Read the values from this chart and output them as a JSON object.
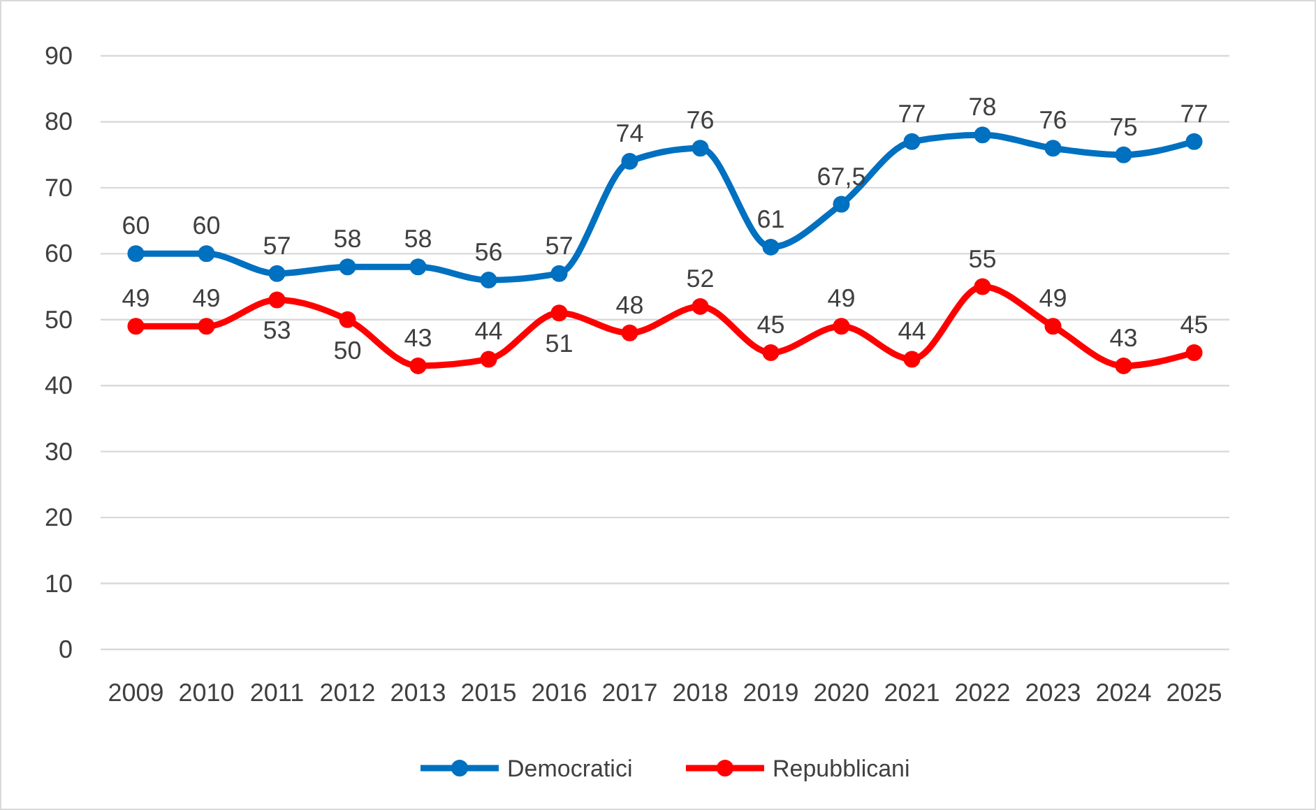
{
  "chart_data": {
    "type": "line",
    "categories": [
      "2009",
      "2010",
      "2011",
      "2012",
      "2013",
      "2015",
      "2016",
      "2017",
      "2018",
      "2019",
      "2020",
      "2021",
      "2022",
      "2023",
      "2024",
      "2025"
    ],
    "series": [
      {
        "name": "Democratici",
        "color": "#0070c0",
        "values": [
          60,
          60,
          57,
          58,
          58,
          56,
          57,
          74,
          76,
          61,
          67.5,
          77,
          78,
          76,
          75,
          77
        ],
        "value_labels": [
          "60",
          "60",
          "57",
          "58",
          "58",
          "56",
          "57",
          "74",
          "76",
          "61",
          "67,5",
          "77",
          "78",
          "76",
          "75",
          "77"
        ]
      },
      {
        "name": "Repubblicani",
        "color": "#ff0000",
        "values": [
          49,
          49,
          53,
          50,
          43,
          44,
          51,
          48,
          52,
          45,
          49,
          44,
          55,
          49,
          43,
          45
        ],
        "value_labels": [
          "49",
          "49",
          "53",
          "50",
          "43",
          "44",
          "51",
          "48",
          "52",
          "45",
          "49",
          "44",
          "55",
          "49",
          "43",
          "45"
        ]
      }
    ],
    "ylim": [
      0,
      90
    ],
    "yticks": [
      0,
      10,
      20,
      30,
      40,
      50,
      60,
      70,
      80,
      90
    ],
    "grid": "y",
    "legend": "bottom",
    "marker": "circle",
    "line_style": "solid"
  }
}
